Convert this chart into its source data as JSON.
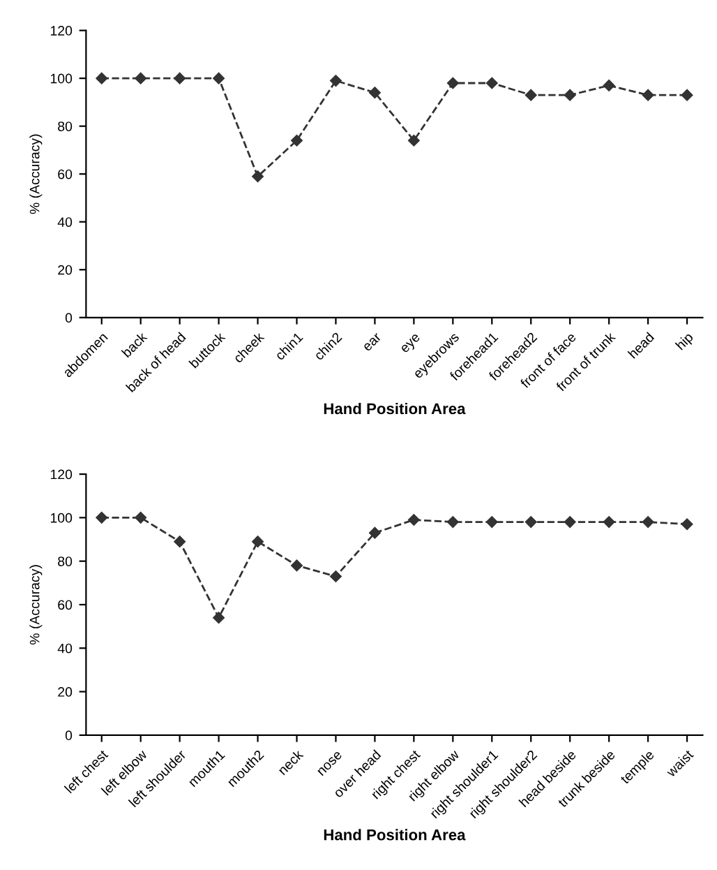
{
  "chart_data": [
    {
      "type": "line",
      "xlabel": "Hand Position Area",
      "ylabel": "% (Accuracy)",
      "categories": [
        "abdomen",
        "back",
        "back of head",
        "buttock",
        "cheek",
        "chin1",
        "chin2",
        "ear",
        "eye",
        "eyebrows",
        "forehead1",
        "forehead2",
        "front of face",
        "front of trunk",
        "head",
        "hip"
      ],
      "series": [
        {
          "color": "#333333",
          "values": [
            100,
            100,
            100,
            100,
            59,
            74,
            99,
            94,
            74,
            98,
            98,
            93,
            93,
            97,
            93,
            93
          ]
        }
      ],
      "ylim": [
        0,
        120
      ],
      "yticks": [
        0,
        20,
        40,
        60,
        80,
        100,
        120
      ],
      "marker": "diamond",
      "line_style": "dashed",
      "grid": false,
      "legend": false
    },
    {
      "type": "line",
      "xlabel": "Hand Position Area",
      "ylabel": "% (Accuracy)",
      "categories": [
        "left chest",
        "left elbow",
        "left shoulder",
        "mouth1",
        "mouth2",
        "neck",
        "nose",
        "over head",
        "right chest",
        "right elbow",
        "right shoulder1",
        "right shoulder2",
        "head beside",
        "trunk beside",
        "temple",
        "waist"
      ],
      "series": [
        {
          "color": "#333333",
          "values": [
            100,
            100,
            89,
            54,
            89,
            78,
            73,
            93,
            99,
            98,
            98,
            98,
            98,
            98,
            98,
            97
          ]
        }
      ],
      "ylim": [
        0,
        120
      ],
      "yticks": [
        0,
        20,
        40,
        60,
        80,
        100,
        120
      ],
      "marker": "diamond",
      "line_style": "dashed",
      "grid": false,
      "legend": false
    }
  ]
}
